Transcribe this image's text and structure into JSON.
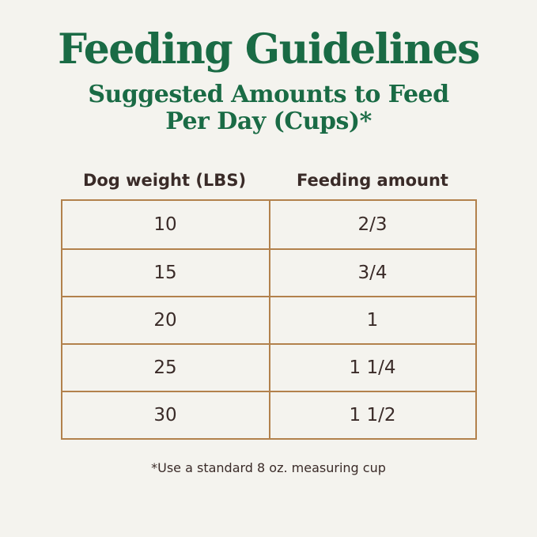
{
  "page": {
    "title": "Feeding Guidelines",
    "subtitle_line1": "Suggested Amounts to Feed",
    "subtitle_line2": "Per Day (Cups)*",
    "footnote": "*Use a standard 8 oz. measuring cup"
  },
  "table": {
    "columns": [
      "Dog weight (LBS)",
      "Feeding amount"
    ],
    "rows": [
      [
        "10",
        "2/3"
      ],
      [
        "15",
        "3/4"
      ],
      [
        "20",
        "1"
      ],
      [
        "25",
        "1 1/4"
      ],
      [
        "30",
        "1 1/2"
      ]
    ]
  },
  "colors": {
    "background": "#f4f3ee",
    "title_green": "#1a6b45",
    "table_border": "#b2814c",
    "text_dark": "#3a2b28"
  },
  "chart_data": {
    "type": "table",
    "title": "Feeding Guidelines",
    "subtitle": "Suggested Amounts to Feed Per Day (Cups)*",
    "columns": [
      "Dog weight (LBS)",
      "Feeding amount"
    ],
    "rows": [
      [
        "10",
        "2/3"
      ],
      [
        "15",
        "3/4"
      ],
      [
        "20",
        "1"
      ],
      [
        "25",
        "1 1/4"
      ],
      [
        "30",
        "1 1/2"
      ]
    ],
    "footnote": "*Use a standard 8 oz. measuring cup",
    "notes": "Dog feeding guide; amounts are cups per day using a standard 8 oz. measuring cup"
  }
}
